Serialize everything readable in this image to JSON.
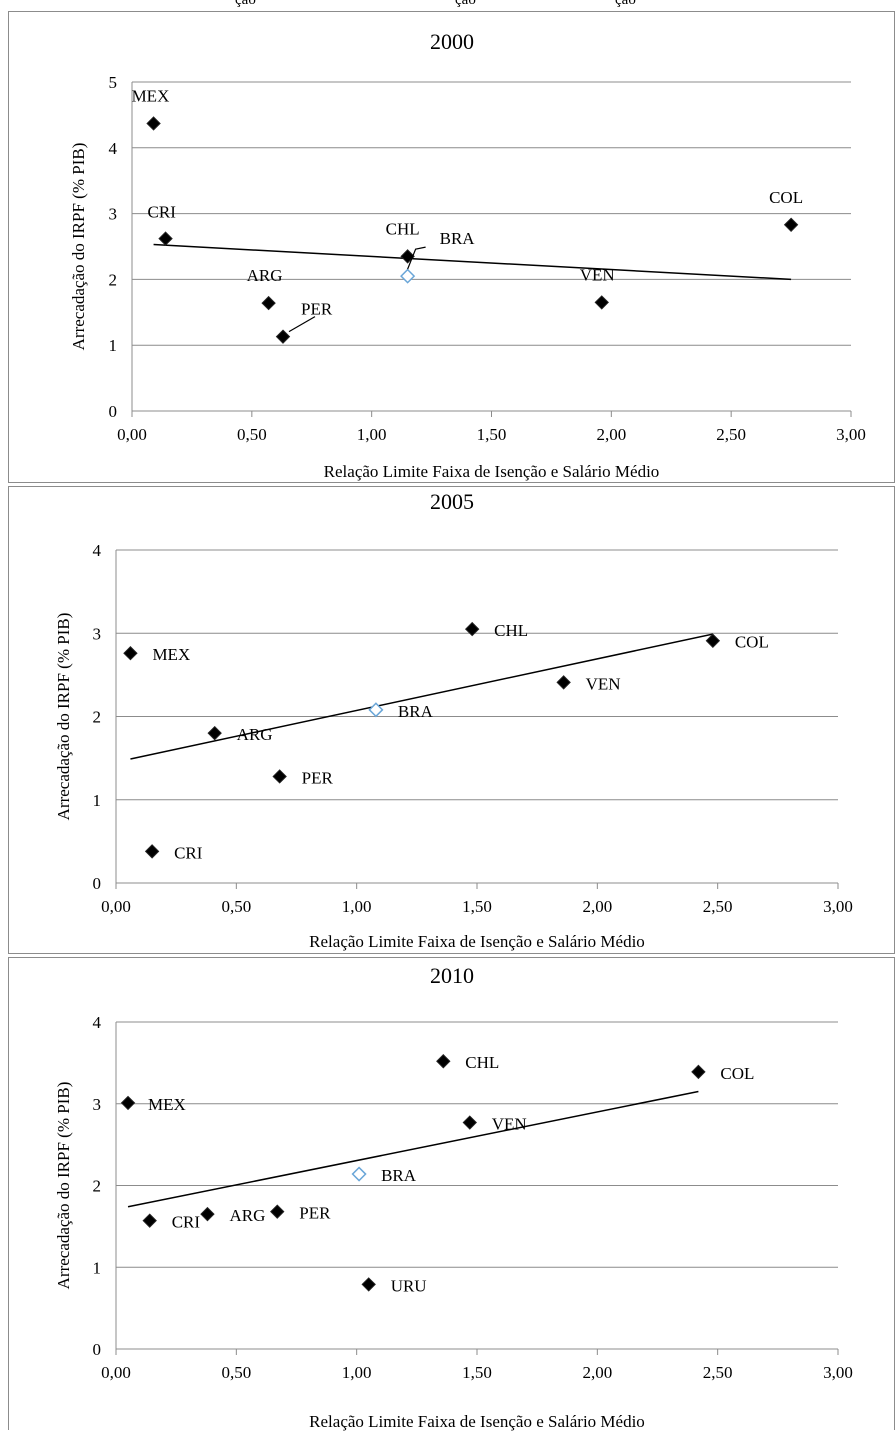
{
  "header_fragments": [
    "ção",
    "ção",
    "ção"
  ],
  "charts": [
    {
      "id": "2000",
      "title": "2000",
      "xlabel": "Relação Limite Faixa de Isenção e Salário Médio",
      "ylabel": "Arrecadação do IRPF (% PIB)",
      "xlim": [
        0,
        3
      ],
      "ylim": [
        0,
        5
      ],
      "xticks": [
        "0,00",
        "0,50",
        "1,00",
        "1,50",
        "2,00",
        "2,50",
        "3,00"
      ],
      "yticks": [
        "0",
        "1",
        "2",
        "3",
        "4",
        "5"
      ],
      "points": [
        {
          "label": "MEX",
          "x": 0.09,
          "y": 4.37,
          "hollow": false
        },
        {
          "label": "CRI",
          "x": 0.14,
          "y": 2.62,
          "hollow": false
        },
        {
          "label": "ARG",
          "x": 0.57,
          "y": 1.64,
          "hollow": false
        },
        {
          "label": "PER",
          "x": 0.63,
          "y": 1.13,
          "hollow": false
        },
        {
          "label": "CHL",
          "x": 1.15,
          "y": 2.35,
          "hollow": false
        },
        {
          "label": "BRA",
          "x": 1.15,
          "y": 2.05,
          "hollow": true
        },
        {
          "label": "VEN",
          "x": 1.96,
          "y": 1.65,
          "hollow": false
        },
        {
          "label": "COL",
          "x": 2.75,
          "y": 2.83,
          "hollow": false
        }
      ],
      "trendline": {
        "x1": 0.09,
        "y1": 2.53,
        "x2": 2.75,
        "y2": 2.0
      }
    },
    {
      "id": "2005",
      "title": "2005",
      "xlabel": "Relação Limite Faixa de Isenção e Salário Médio",
      "ylabel": "Arrecadação do IRPF (% PIB)",
      "xlim": [
        0,
        3
      ],
      "ylim": [
        0,
        4
      ],
      "xticks": [
        "0,00",
        "0,50",
        "1,00",
        "1,50",
        "2,00",
        "2,50",
        "3,00"
      ],
      "yticks": [
        "0",
        "1",
        "2",
        "3",
        "4"
      ],
      "points": [
        {
          "label": "MEX",
          "x": 0.06,
          "y": 2.76,
          "hollow": false
        },
        {
          "label": "CRI",
          "x": 0.15,
          "y": 0.38,
          "hollow": false
        },
        {
          "label": "ARG",
          "x": 0.41,
          "y": 1.8,
          "hollow": false
        },
        {
          "label": "PER",
          "x": 0.68,
          "y": 1.28,
          "hollow": false
        },
        {
          "label": "BRA",
          "x": 1.08,
          "y": 2.08,
          "hollow": true
        },
        {
          "label": "CHL",
          "x": 1.48,
          "y": 3.05,
          "hollow": false
        },
        {
          "label": "VEN",
          "x": 1.86,
          "y": 2.41,
          "hollow": false
        },
        {
          "label": "COL",
          "x": 2.48,
          "y": 2.91,
          "hollow": false
        }
      ],
      "trendline": {
        "x1": 0.06,
        "y1": 1.49,
        "x2": 2.48,
        "y2": 2.99
      }
    },
    {
      "id": "2010",
      "title": "2010",
      "xlabel": "Relação Limite Faixa de Isenção e Salário Médio",
      "ylabel": "Arrecadação do IRPF (% PIB)",
      "xlim": [
        0,
        3
      ],
      "ylim": [
        0,
        4
      ],
      "xticks": [
        "0,00",
        "0,50",
        "1,00",
        "1,50",
        "2,00",
        "2,50",
        "3,00"
      ],
      "yticks": [
        "0",
        "1",
        "2",
        "3",
        "4"
      ],
      "points": [
        {
          "label": "MEX",
          "x": 0.05,
          "y": 3.01,
          "hollow": false
        },
        {
          "label": "CRI",
          "x": 0.14,
          "y": 1.57,
          "hollow": false
        },
        {
          "label": "ARG",
          "x": 0.38,
          "y": 1.65,
          "hollow": false
        },
        {
          "label": "PER",
          "x": 0.67,
          "y": 1.68,
          "hollow": false
        },
        {
          "label": "URU",
          "x": 1.05,
          "y": 0.79,
          "hollow": false
        },
        {
          "label": "BRA",
          "x": 1.01,
          "y": 2.14,
          "hollow": true
        },
        {
          "label": "CHL",
          "x": 1.36,
          "y": 3.52,
          "hollow": false
        },
        {
          "label": "VEN",
          "x": 1.47,
          "y": 2.77,
          "hollow": false
        },
        {
          "label": "COL",
          "x": 2.42,
          "y": 3.39,
          "hollow": false
        }
      ],
      "trendline": {
        "x1": 0.05,
        "y1": 1.74,
        "x2": 2.42,
        "y2": 3.15
      }
    }
  ],
  "chart_data": [
    {
      "type": "scatter",
      "title": "2000",
      "xlabel": "Relação Limite Faixa de Isenção e Salário Médio",
      "ylabel": "Arrecadação do IRPF (% PIB)",
      "xlim": [
        0,
        3
      ],
      "ylim": [
        0,
        5
      ],
      "grid": true,
      "points": [
        {
          "label": "MEX",
          "x": 0.09,
          "y": 4.37
        },
        {
          "label": "CRI",
          "x": 0.14,
          "y": 2.62
        },
        {
          "label": "ARG",
          "x": 0.57,
          "y": 1.64
        },
        {
          "label": "PER",
          "x": 0.63,
          "y": 1.13
        },
        {
          "label": "CHL",
          "x": 1.15,
          "y": 2.35
        },
        {
          "label": "BRA",
          "x": 1.15,
          "y": 2.05
        },
        {
          "label": "VEN",
          "x": 1.96,
          "y": 1.65
        },
        {
          "label": "COL",
          "x": 2.75,
          "y": 2.83
        }
      ]
    },
    {
      "type": "scatter",
      "title": "2005",
      "xlabel": "Relação Limite Faixa de Isenção e Salário Médio",
      "ylabel": "Arrecadação do IRPF (% PIB)",
      "xlim": [
        0,
        3
      ],
      "ylim": [
        0,
        4
      ],
      "grid": true,
      "points": [
        {
          "label": "MEX",
          "x": 0.06,
          "y": 2.76
        },
        {
          "label": "CRI",
          "x": 0.15,
          "y": 0.38
        },
        {
          "label": "ARG",
          "x": 0.41,
          "y": 1.8
        },
        {
          "label": "PER",
          "x": 0.68,
          "y": 1.28
        },
        {
          "label": "BRA",
          "x": 1.08,
          "y": 2.08
        },
        {
          "label": "CHL",
          "x": 1.48,
          "y": 3.05
        },
        {
          "label": "VEN",
          "x": 1.86,
          "y": 2.41
        },
        {
          "label": "COL",
          "x": 2.48,
          "y": 2.91
        }
      ]
    },
    {
      "type": "scatter",
      "title": "2010",
      "xlabel": "Relação Limite Faixa de Isenção e Salário Médio",
      "ylabel": "Arrecadação do IRPF (% PIB)",
      "xlim": [
        0,
        3
      ],
      "ylim": [
        0,
        4
      ],
      "grid": true,
      "points": [
        {
          "label": "MEX",
          "x": 0.05,
          "y": 3.01
        },
        {
          "label": "CRI",
          "x": 0.14,
          "y": 1.57
        },
        {
          "label": "ARG",
          "x": 0.38,
          "y": 1.65
        },
        {
          "label": "PER",
          "x": 0.67,
          "y": 1.68
        },
        {
          "label": "URU",
          "x": 1.05,
          "y": 0.79
        },
        {
          "label": "BRA",
          "x": 1.01,
          "y": 2.14
        },
        {
          "label": "CHL",
          "x": 1.36,
          "y": 3.52
        },
        {
          "label": "VEN",
          "x": 1.47,
          "y": 2.77
        },
        {
          "label": "COL",
          "x": 2.42,
          "y": 3.39
        }
      ]
    }
  ]
}
